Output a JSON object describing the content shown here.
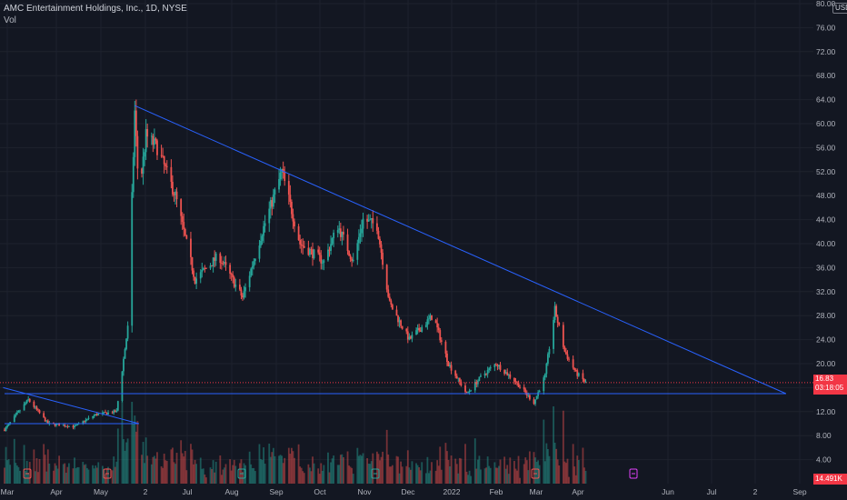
{
  "header": {
    "title": "AMC Entertainment Holdings, Inc., 1D, NYSE",
    "volume_label": "Vol"
  },
  "currency": "USD",
  "price_tag": {
    "price": "16.83",
    "countdown": "03:18:05"
  },
  "volume_tag": "14.491K",
  "colors": {
    "up": "#26a69a",
    "down": "#ef5350",
    "trendline": "#2962ff",
    "background": "#131722"
  },
  "chart_data": {
    "type": "candlestick",
    "title": "AMC Entertainment Holdings, Inc., 1D, NYSE",
    "x_axis": {
      "tick_labels": [
        "Mar",
        "Apr",
        "May",
        "2",
        "Jul",
        "Aug",
        "Sep",
        "Oct",
        "Nov",
        "Dec",
        "2022",
        "Feb",
        "Mar",
        "Apr",
        "Jun",
        "Jul",
        "2",
        "Sep"
      ]
    },
    "y_axis": {
      "ylim": [
        0,
        80
      ],
      "tick_labels": [
        "80.00",
        "76.00",
        "72.00",
        "68.00",
        "64.00",
        "60.00",
        "56.00",
        "52.00",
        "48.00",
        "44.00",
        "40.00",
        "36.00",
        "32.00",
        "28.00",
        "24.00",
        "20.00",
        "16.00",
        "12.00",
        "8.00",
        "4.00"
      ],
      "position": "right"
    },
    "price_path": [
      {
        "date": "2021-03-01",
        "close": 9
      },
      {
        "date": "2021-03-18",
        "close": 14
      },
      {
        "date": "2021-04-01",
        "close": 10
      },
      {
        "date": "2021-04-20",
        "close": 9.5
      },
      {
        "date": "2021-05-05",
        "close": 11.5
      },
      {
        "date": "2021-05-20",
        "close": 12
      },
      {
        "date": "2021-05-28",
        "close": 26
      },
      {
        "date": "2021-06-02",
        "close": 62
      },
      {
        "date": "2021-06-05",
        "close": 48
      },
      {
        "date": "2021-06-10",
        "close": 58
      },
      {
        "date": "2021-06-18",
        "close": 56
      },
      {
        "date": "2021-07-01",
        "close": 48
      },
      {
        "date": "2021-07-15",
        "close": 34
      },
      {
        "date": "2021-08-01",
        "close": 38
      },
      {
        "date": "2021-08-18",
        "close": 31
      },
      {
        "date": "2021-09-01",
        "close": 42
      },
      {
        "date": "2021-09-15",
        "close": 52
      },
      {
        "date": "2021-09-28",
        "close": 40
      },
      {
        "date": "2021-10-15",
        "close": 37
      },
      {
        "date": "2021-10-25",
        "close": 43
      },
      {
        "date": "2021-11-05",
        "close": 37
      },
      {
        "date": "2021-11-12",
        "close": 44
      },
      {
        "date": "2021-11-22",
        "close": 43
      },
      {
        "date": "2021-12-01",
        "close": 30
      },
      {
        "date": "2021-12-15",
        "close": 24
      },
      {
        "date": "2022-01-01",
        "close": 28
      },
      {
        "date": "2022-01-12",
        "close": 20
      },
      {
        "date": "2022-01-25",
        "close": 15
      },
      {
        "date": "2022-02-05",
        "close": 18
      },
      {
        "date": "2022-02-15",
        "close": 20
      },
      {
        "date": "2022-03-01",
        "close": 17
      },
      {
        "date": "2022-03-14",
        "close": 13.5
      },
      {
        "date": "2022-03-22",
        "close": 18
      },
      {
        "date": "2022-03-29",
        "close": 29
      },
      {
        "date": "2022-04-05",
        "close": 22
      },
      {
        "date": "2022-04-13",
        "close": 18.5
      },
      {
        "date": "2022-04-20",
        "close": 16.83
      }
    ],
    "trendlines": [
      {
        "from": {
          "date": "2021-06-02",
          "price": 63
        },
        "to": {
          "date": "2022-09-10",
          "price": 15
        }
      },
      {
        "from": {
          "date": "2021-03-01",
          "price": 15
        },
        "to": {
          "date": "2022-09-10",
          "price": 15
        }
      },
      {
        "from": {
          "date": "2021-02-28",
          "price": 16
        },
        "to": {
          "date": "2021-06-05",
          "price": 10
        }
      },
      {
        "from": {
          "date": "2021-03-01",
          "price": 10
        },
        "to": {
          "date": "2021-06-05",
          "price": 10
        }
      }
    ],
    "last_price": 16.83,
    "volume_pane": true
  }
}
